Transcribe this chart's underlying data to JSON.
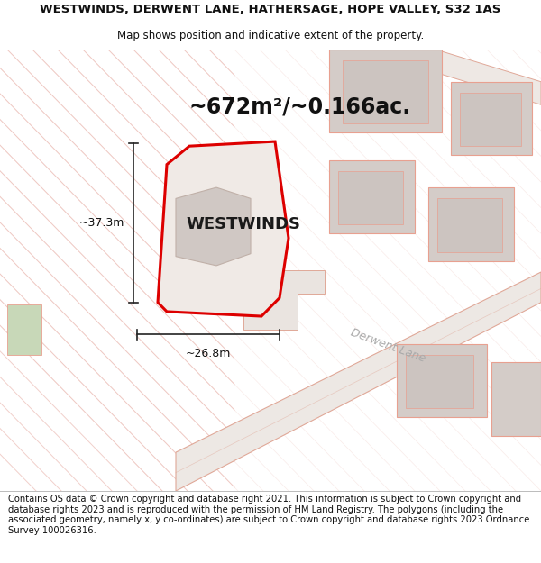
{
  "title_line1": "WESTWINDS, DERWENT LANE, HATHERSAGE, HOPE VALLEY, S32 1AS",
  "title_line2": "Map shows position and indicative extent of the property.",
  "area_text": "~672m²/~0.166ac.",
  "property_name": "WESTWINDS",
  "dim_width": "~26.8m",
  "dim_height": "~37.3m",
  "road_label": "Derwent Lane",
  "footer": "Contains OS data © Crown copyright and database right 2021. This information is subject to Crown copyright and database rights 2023 and is reproduced with the permission of HM Land Registry. The polygons (including the associated geometry, namely x, y co-ordinates) are subject to Crown copyright and database rights 2023 Ordnance Survey 100026316.",
  "bg_color": "#ffffff",
  "map_bg": "#f7f2ef",
  "plot_outline_color": "#dd0000",
  "plot_fill_color": "#f0eae6",
  "building_fill": "#d4ccc8",
  "building_edge": "#e8a090",
  "road_fill": "#ede8e4",
  "road_edge": "#e0a898",
  "hatch_color": "#e8b0a8",
  "title_fontsize": 9.5,
  "subtitle_fontsize": 8.5,
  "area_fontsize": 17,
  "property_fontsize": 13,
  "dim_fontsize": 9,
  "road_label_fontsize": 9,
  "footer_fontsize": 7.2
}
